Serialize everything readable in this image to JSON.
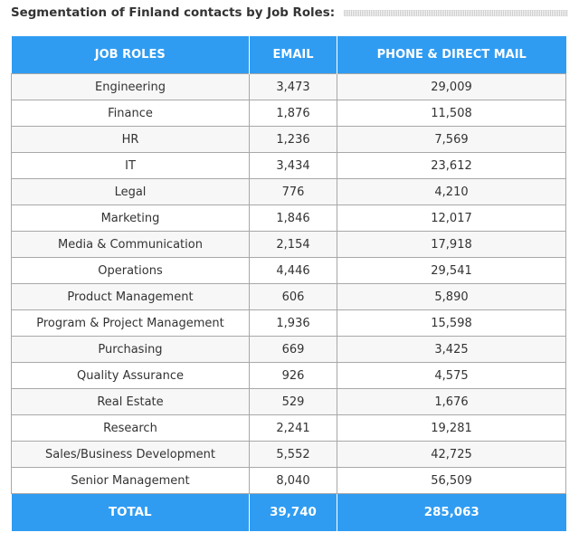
{
  "heading": "Segmentation of Finland contacts by Job Roles:",
  "colors": {
    "header_bg": "#2f9cf2",
    "header_text": "#ffffff",
    "row_odd": "#f7f7f7",
    "row_even": "#ffffff",
    "border": "#a8a8a8"
  },
  "table": {
    "headers": [
      "JOB ROLES",
      "EMAIL",
      "PHONE & DIRECT MAIL"
    ],
    "rows": [
      {
        "role": "Engineering",
        "email": "3,473",
        "phone": "29,009"
      },
      {
        "role": "Finance",
        "email": "1,876",
        "phone": "11,508"
      },
      {
        "role": "HR",
        "email": "1,236",
        "phone": "7,569"
      },
      {
        "role": "IT",
        "email": "3,434",
        "phone": "23,612"
      },
      {
        "role": "Legal",
        "email": "776",
        "phone": "4,210"
      },
      {
        "role": "Marketing",
        "email": "1,846",
        "phone": "12,017"
      },
      {
        "role": "Media & Communication",
        "email": "2,154",
        "phone": "17,918"
      },
      {
        "role": "Operations",
        "email": "4,446",
        "phone": "29,541"
      },
      {
        "role": "Product Management",
        "email": "606",
        "phone": "5,890"
      },
      {
        "role": "Program & Project Management",
        "email": "1,936",
        "phone": "15,598"
      },
      {
        "role": "Purchasing",
        "email": "669",
        "phone": "3,425"
      },
      {
        "role": "Quality Assurance",
        "email": "926",
        "phone": "4,575"
      },
      {
        "role": "Real Estate",
        "email": "529",
        "phone": "1,676"
      },
      {
        "role": "Research",
        "email": "2,241",
        "phone": "19,281"
      },
      {
        "role": "Sales/Business Development",
        "email": "5,552",
        "phone": "42,725"
      },
      {
        "role": "Senior Management",
        "email": "8,040",
        "phone": "56,509"
      }
    ],
    "total": {
      "label": "TOTAL",
      "email": "39,740",
      "phone": "285,063"
    }
  }
}
